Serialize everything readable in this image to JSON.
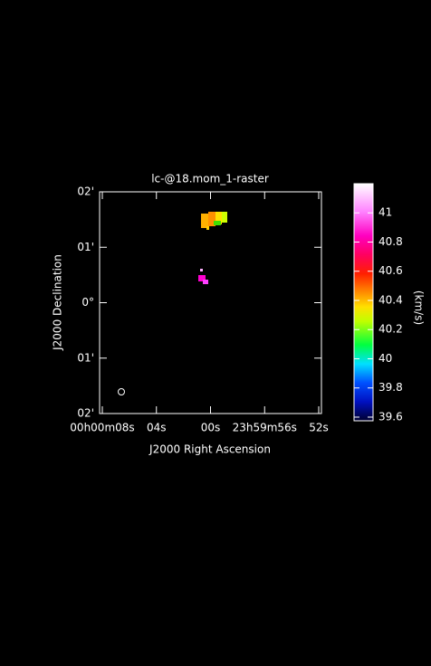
{
  "chart_data": {
    "type": "image",
    "title": "lc-@18.mom_1-raster",
    "xlabel": "J2000 Right Ascension",
    "ylabel": "J2000 Declination",
    "xlim": [
      8.2,
      -8.2
    ],
    "xticks": [
      {
        "value": 8,
        "label": "00h00m08s"
      },
      {
        "value": 4,
        "label": "04s"
      },
      {
        "value": 0,
        "label": "00s"
      },
      {
        "value": -4,
        "label": "23h59m56s"
      },
      {
        "value": -8,
        "label": "52s"
      }
    ],
    "ylim": [
      -2,
      2
    ],
    "yticks": [
      {
        "value": 2,
        "label": "02'"
      },
      {
        "value": 1,
        "label": "01'"
      },
      {
        "value": 0,
        "label": "0°"
      },
      {
        "value": -1,
        "label": "01'"
      },
      {
        "value": -2,
        "label": "02'"
      }
    ],
    "colorbar": {
      "label": "(km/s)",
      "clim": [
        39.575,
        41.2
      ],
      "ticks": [
        39.6,
        39.8,
        40,
        40.2,
        40.4,
        40.6,
        40.8,
        41
      ]
    }
  }
}
